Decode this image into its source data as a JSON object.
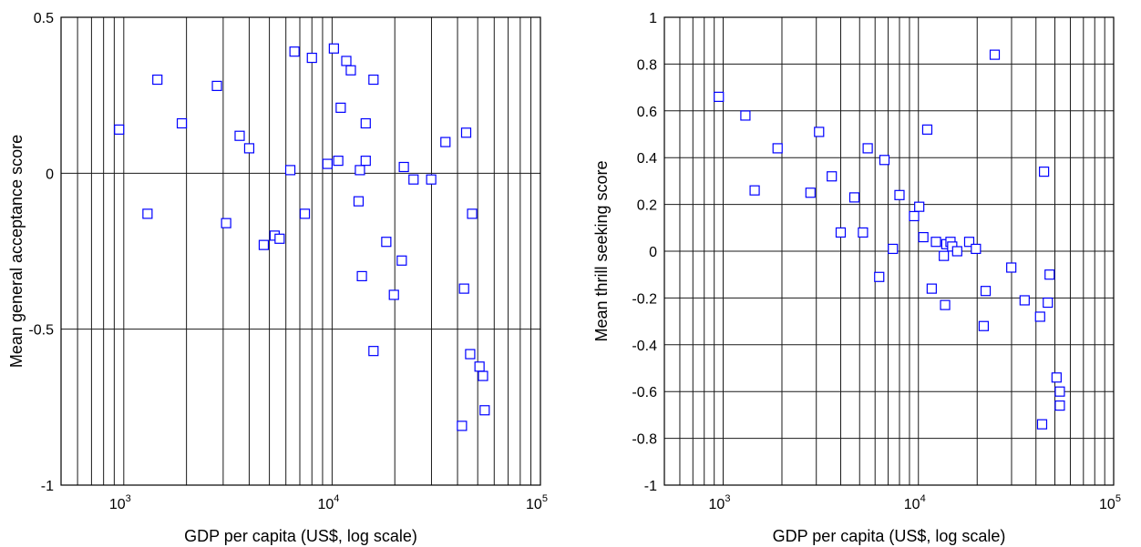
{
  "chart_data": [
    {
      "type": "scatter",
      "title": "",
      "xlabel": "GDP per capita (US$, log scale)",
      "ylabel": "Mean general acceptance score",
      "xscale": "log",
      "xlim": [
        500,
        100000
      ],
      "ylim": [
        -1,
        0.5
      ],
      "grid": true,
      "marker": "open-square",
      "marker_color": "#0000ff",
      "x_ticks": [
        {
          "base": "10",
          "exp": "3",
          "value": 1000
        },
        {
          "base": "10",
          "exp": "4",
          "value": 10000
        },
        {
          "base": "10",
          "exp": "5",
          "value": 100000
        }
      ],
      "y_ticks": [
        {
          "label": "0.5",
          "value": 0.5
        },
        {
          "label": "0",
          "value": 0
        },
        {
          "label": "-0.5",
          "value": -0.5
        },
        {
          "label": "-1",
          "value": -1
        }
      ],
      "points": [
        {
          "x": 950,
          "y": 0.14
        },
        {
          "x": 1300,
          "y": -0.13
        },
        {
          "x": 1450,
          "y": 0.3
        },
        {
          "x": 1900,
          "y": 0.16
        },
        {
          "x": 2800,
          "y": 0.28
        },
        {
          "x": 3100,
          "y": -0.16
        },
        {
          "x": 3600,
          "y": 0.12
        },
        {
          "x": 4000,
          "y": 0.08
        },
        {
          "x": 4700,
          "y": -0.23
        },
        {
          "x": 5300,
          "y": -0.2
        },
        {
          "x": 5600,
          "y": -0.21
        },
        {
          "x": 6300,
          "y": 0.01
        },
        {
          "x": 6600,
          "y": 0.39
        },
        {
          "x": 7400,
          "y": -0.13
        },
        {
          "x": 8000,
          "y": 0.37
        },
        {
          "x": 9500,
          "y": 0.03
        },
        {
          "x": 10200,
          "y": 0.4
        },
        {
          "x": 10700,
          "y": 0.04
        },
        {
          "x": 11000,
          "y": 0.21
        },
        {
          "x": 11700,
          "y": 0.36
        },
        {
          "x": 12300,
          "y": 0.33
        },
        {
          "x": 13400,
          "y": -0.09
        },
        {
          "x": 13600,
          "y": 0.01
        },
        {
          "x": 13900,
          "y": -0.33
        },
        {
          "x": 14500,
          "y": 0.16
        },
        {
          "x": 14500,
          "y": 0.04
        },
        {
          "x": 15800,
          "y": 0.3
        },
        {
          "x": 15800,
          "y": -0.57
        },
        {
          "x": 18200,
          "y": -0.22
        },
        {
          "x": 19800,
          "y": -0.39
        },
        {
          "x": 21600,
          "y": -0.28
        },
        {
          "x": 22100,
          "y": 0.02
        },
        {
          "x": 24600,
          "y": -0.02
        },
        {
          "x": 29900,
          "y": -0.02
        },
        {
          "x": 35000,
          "y": 0.1
        },
        {
          "x": 42000,
          "y": -0.81
        },
        {
          "x": 43000,
          "y": -0.37
        },
        {
          "x": 44000,
          "y": 0.13
        },
        {
          "x": 46000,
          "y": -0.58
        },
        {
          "x": 47000,
          "y": -0.13
        },
        {
          "x": 51000,
          "y": -0.62
        },
        {
          "x": 53000,
          "y": -0.65
        },
        {
          "x": 54000,
          "y": -0.76
        }
      ]
    },
    {
      "type": "scatter",
      "title": "",
      "xlabel": "GDP per capita (US$, log scale)",
      "ylabel": "Mean thrill seeking score",
      "xscale": "log",
      "xlim": [
        500,
        100000
      ],
      "ylim": [
        -1,
        1
      ],
      "grid": true,
      "marker": "open-square",
      "marker_color": "#0000ff",
      "x_ticks": [
        {
          "base": "10",
          "exp": "3",
          "value": 1000
        },
        {
          "base": "10",
          "exp": "4",
          "value": 10000
        },
        {
          "base": "10",
          "exp": "5",
          "value": 100000
        }
      ],
      "y_ticks": [
        {
          "label": "1",
          "value": 1
        },
        {
          "label": "0.8",
          "value": 0.8
        },
        {
          "label": "0.6",
          "value": 0.6
        },
        {
          "label": "0.4",
          "value": 0.4
        },
        {
          "label": "0.2",
          "value": 0.2
        },
        {
          "label": "0",
          "value": 0
        },
        {
          "label": "-0.2",
          "value": -0.2
        },
        {
          "label": "-0.4",
          "value": -0.4
        },
        {
          "label": "-0.6",
          "value": -0.6
        },
        {
          "label": "-0.8",
          "value": -0.8
        },
        {
          "label": "-1",
          "value": -1
        }
      ],
      "points": [
        {
          "x": 950,
          "y": 0.66
        },
        {
          "x": 1300,
          "y": 0.58
        },
        {
          "x": 1450,
          "y": 0.26
        },
        {
          "x": 1900,
          "y": 0.44
        },
        {
          "x": 2800,
          "y": 0.25
        },
        {
          "x": 3100,
          "y": 0.51
        },
        {
          "x": 3600,
          "y": 0.32
        },
        {
          "x": 4000,
          "y": 0.08
        },
        {
          "x": 4700,
          "y": 0.23
        },
        {
          "x": 5200,
          "y": 0.08
        },
        {
          "x": 5500,
          "y": 0.44
        },
        {
          "x": 6300,
          "y": -0.11
        },
        {
          "x": 6700,
          "y": 0.39
        },
        {
          "x": 7400,
          "y": 0.01
        },
        {
          "x": 8000,
          "y": 0.24
        },
        {
          "x": 9500,
          "y": 0.15
        },
        {
          "x": 10100,
          "y": 0.19
        },
        {
          "x": 10600,
          "y": 0.06
        },
        {
          "x": 11100,
          "y": 0.52
        },
        {
          "x": 11700,
          "y": -0.16
        },
        {
          "x": 12300,
          "y": 0.04
        },
        {
          "x": 13500,
          "y": -0.02
        },
        {
          "x": 13700,
          "y": -0.23
        },
        {
          "x": 13900,
          "y": 0.03
        },
        {
          "x": 14600,
          "y": 0.04
        },
        {
          "x": 14900,
          "y": 0.02
        },
        {
          "x": 15800,
          "y": 0.0
        },
        {
          "x": 18200,
          "y": 0.04
        },
        {
          "x": 19700,
          "y": 0.01
        },
        {
          "x": 21600,
          "y": -0.32
        },
        {
          "x": 22100,
          "y": -0.17
        },
        {
          "x": 24600,
          "y": 0.84
        },
        {
          "x": 29900,
          "y": -0.07
        },
        {
          "x": 35000,
          "y": -0.21
        },
        {
          "x": 42000,
          "y": -0.28
        },
        {
          "x": 43000,
          "y": -0.74
        },
        {
          "x": 44000,
          "y": 0.34
        },
        {
          "x": 46000,
          "y": -0.22
        },
        {
          "x": 47000,
          "y": -0.1
        },
        {
          "x": 51000,
          "y": -0.54
        },
        {
          "x": 53000,
          "y": -0.6
        },
        {
          "x": 53000,
          "y": -0.66
        }
      ]
    }
  ]
}
